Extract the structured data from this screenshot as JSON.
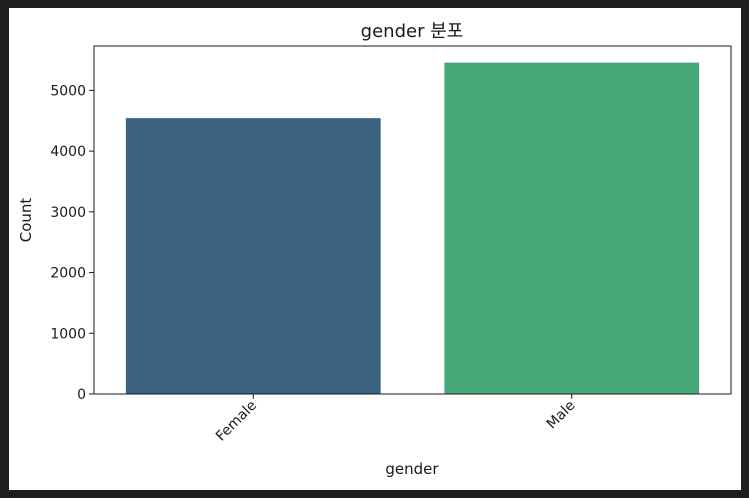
{
  "chart_data": {
    "type": "bar",
    "title": "gender 분포",
    "xlabel": "gender",
    "ylabel": "Count",
    "categories": [
      "Female",
      "Male"
    ],
    "values": [
      4543,
      5457
    ],
    "bar_colors": [
      "#3b6380",
      "#46a878"
    ],
    "ylim": [
      0,
      5731
    ],
    "yticks": [
      0,
      1000,
      2000,
      3000,
      4000,
      5000
    ],
    "ytick_labels": [
      "0",
      "1000",
      "2000",
      "3000",
      "4000",
      "5000"
    ],
    "xtick_rotation_deg": 45,
    "grid": false,
    "legend": "none"
  }
}
